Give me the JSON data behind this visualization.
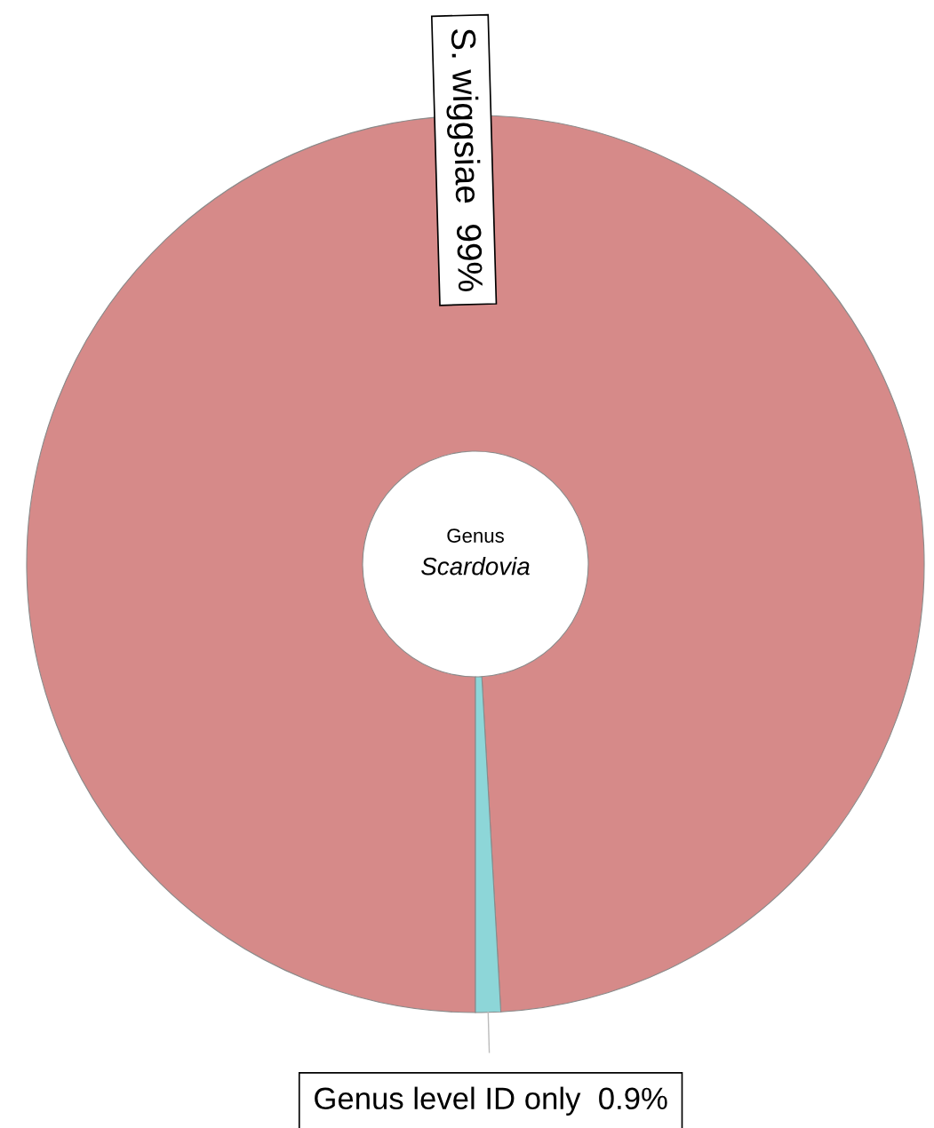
{
  "chart_data": {
    "type": "donut",
    "title": "Genus",
    "subtitle": "Scardovia",
    "categories": [
      "S. wiggsiae",
      "Genus level ID only"
    ],
    "values": [
      99,
      0.9
    ],
    "value_labels": [
      "99%",
      "0.9%"
    ],
    "colors": [
      "#d68a89",
      "#8dd6d8"
    ],
    "legend": false
  }
}
